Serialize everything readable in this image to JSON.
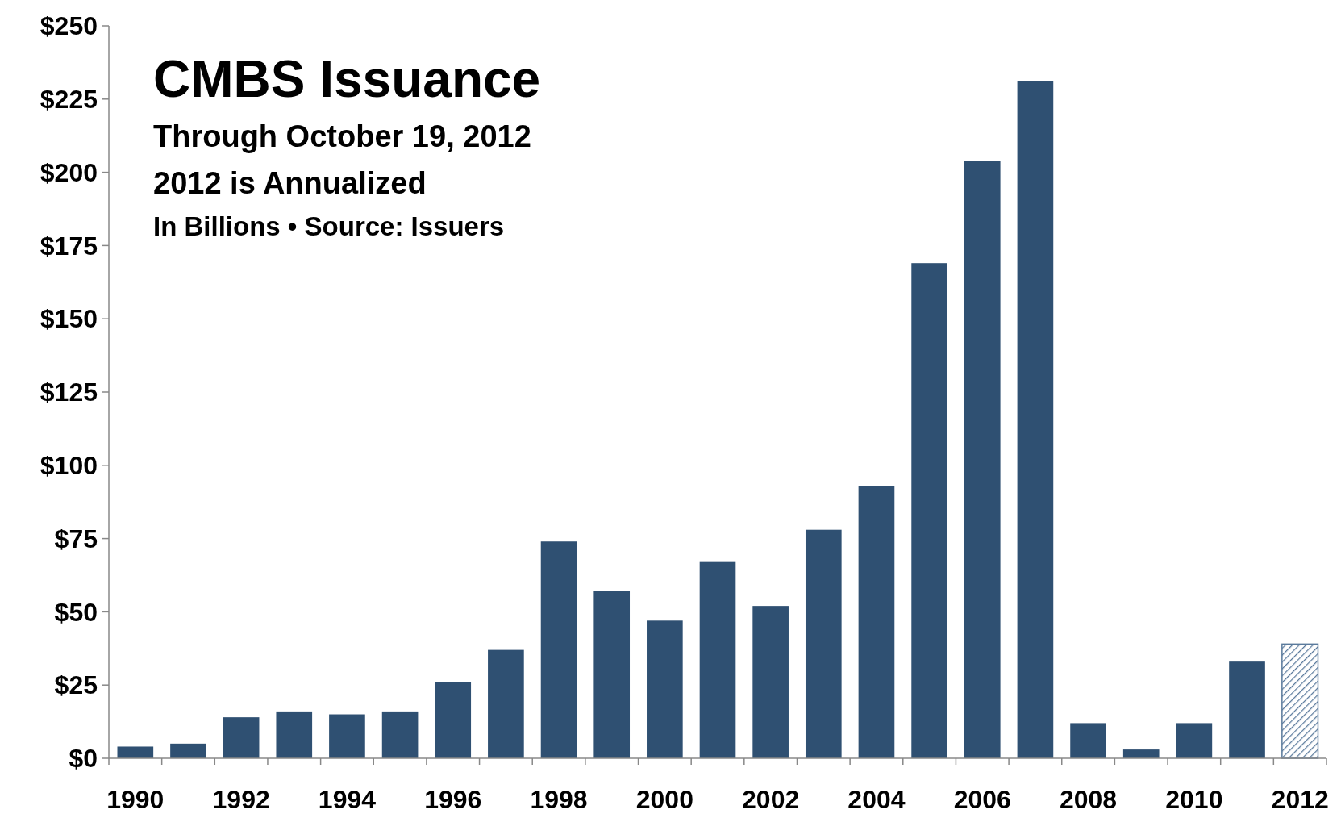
{
  "chart_data": {
    "type": "bar",
    "title": "CMBS Issuance",
    "subtitle": "Through October 19, 2012",
    "annotations": [
      "2012 is Annualized",
      "In Billions • Source: Issuers"
    ],
    "categories": [
      "1990",
      null,
      "1992",
      null,
      "1994",
      null,
      "1996",
      null,
      "1998",
      null,
      "2000",
      null,
      "2002",
      null,
      "2004",
      null,
      "2006",
      null,
      "2008",
      null,
      "2010",
      null,
      "2012"
    ],
    "values": [
      4,
      5,
      14,
      16,
      15,
      16,
      26,
      37,
      74,
      57,
      47,
      67,
      52,
      78,
      93,
      169,
      204,
      231,
      12,
      3,
      12,
      33,
      39
    ],
    "colors": [
      "#2f5072",
      "#2f5072",
      "#2f5072",
      "#2f5072",
      "#2f5072",
      "#2f5072",
      "#2f5072",
      "#2f5072",
      "#2f5072",
      "#2f5072",
      "#2f5072",
      "#2f5072",
      "#2f5072",
      "#2f5072",
      "#2f5072",
      "#2f5072",
      "#2f5072",
      "#2f5072",
      "#2f5072",
      "#2f5072",
      "#2f5072",
      "#2f5072",
      "#5a7a9c"
    ],
    "ylim": [
      0,
      250
    ],
    "yticks": [
      {
        "value": 0,
        "label": "$0"
      },
      {
        "value": 25,
        "label": "$25"
      },
      {
        "value": 50,
        "label": "$50"
      },
      {
        "value": 75,
        "label": "$75"
      },
      {
        "value": 100,
        "label": "$100"
      },
      {
        "value": 125,
        "label": "$125"
      },
      {
        "value": 150,
        "label": "$150"
      },
      {
        "value": 175,
        "label": "$175"
      },
      {
        "value": 200,
        "label": "$200"
      },
      {
        "value": 225,
        "label": "$225"
      },
      {
        "value": 250,
        "label": "$250"
      }
    ],
    "grid": false
  }
}
